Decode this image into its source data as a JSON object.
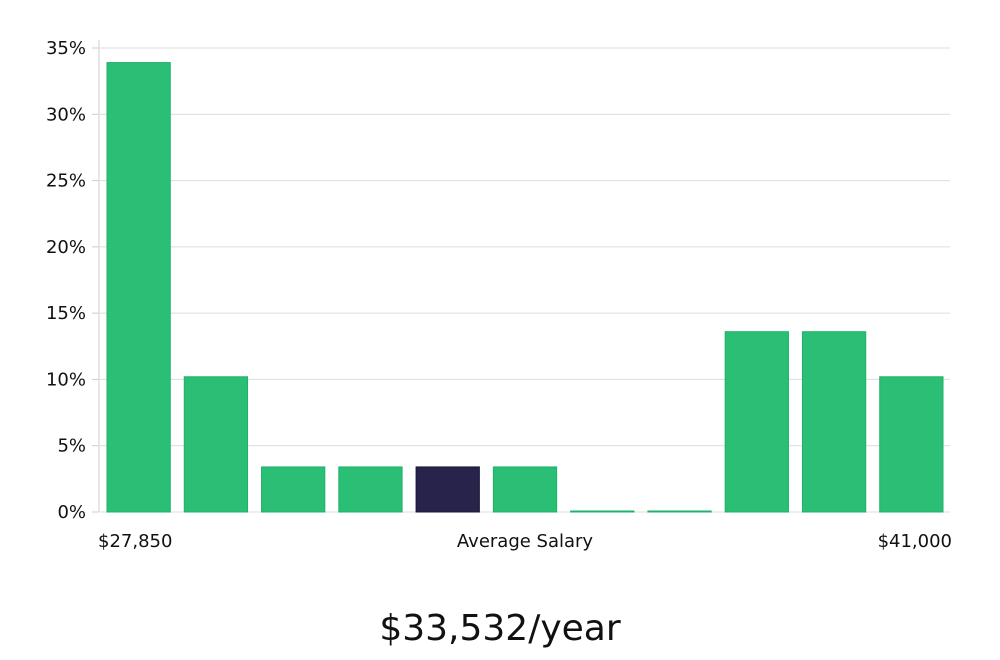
{
  "chart_data": {
    "type": "bar",
    "categories": [
      "1",
      "2",
      "3",
      "4",
      "5",
      "6",
      "7",
      "8",
      "9",
      "10",
      "11"
    ],
    "values": [
      33.9,
      10.2,
      3.4,
      3.4,
      3.4,
      3.4,
      0,
      0,
      13.6,
      13.6,
      10.2
    ],
    "highlight_index": 4,
    "ylim": [
      0,
      35
    ],
    "yticks": [
      0,
      5,
      10,
      15,
      20,
      25,
      30,
      35
    ],
    "ytick_labels": [
      "0%",
      "5%",
      "10%",
      "15%",
      "20%",
      "25%",
      "30%",
      "35%"
    ],
    "x_min_label": "$27,850",
    "x_center_label": "Average Salary",
    "x_max_label": "$41,000",
    "grid": true,
    "colors": {
      "bar": "#2bbf75",
      "highlight": "#28234a"
    }
  },
  "average_salary": "$33,532/year"
}
